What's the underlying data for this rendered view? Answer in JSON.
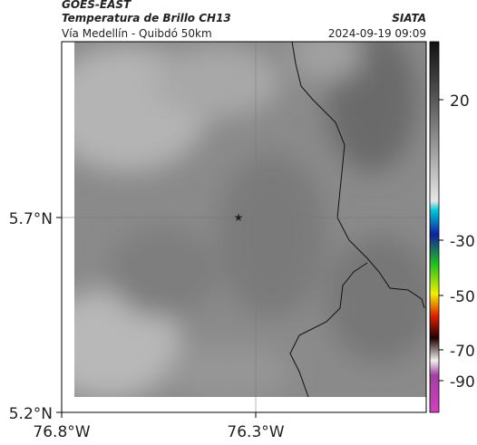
{
  "header": {
    "title": "GOES-EAST",
    "subtitle": "Temperatura de Brillo CH13",
    "location": "Vía Medellín - Quibdó 50km",
    "source": "SIATA",
    "datetime": "2024-09-19 09:09"
  },
  "axes": {
    "y_ticks": [
      "5.7°N",
      "5.2°N"
    ],
    "x_ticks": [
      "76.8°W",
      "76.3°W"
    ]
  },
  "colorbar": {
    "ticks": [
      "20",
      "-30",
      "-50",
      "-70",
      "-90"
    ]
  }
}
